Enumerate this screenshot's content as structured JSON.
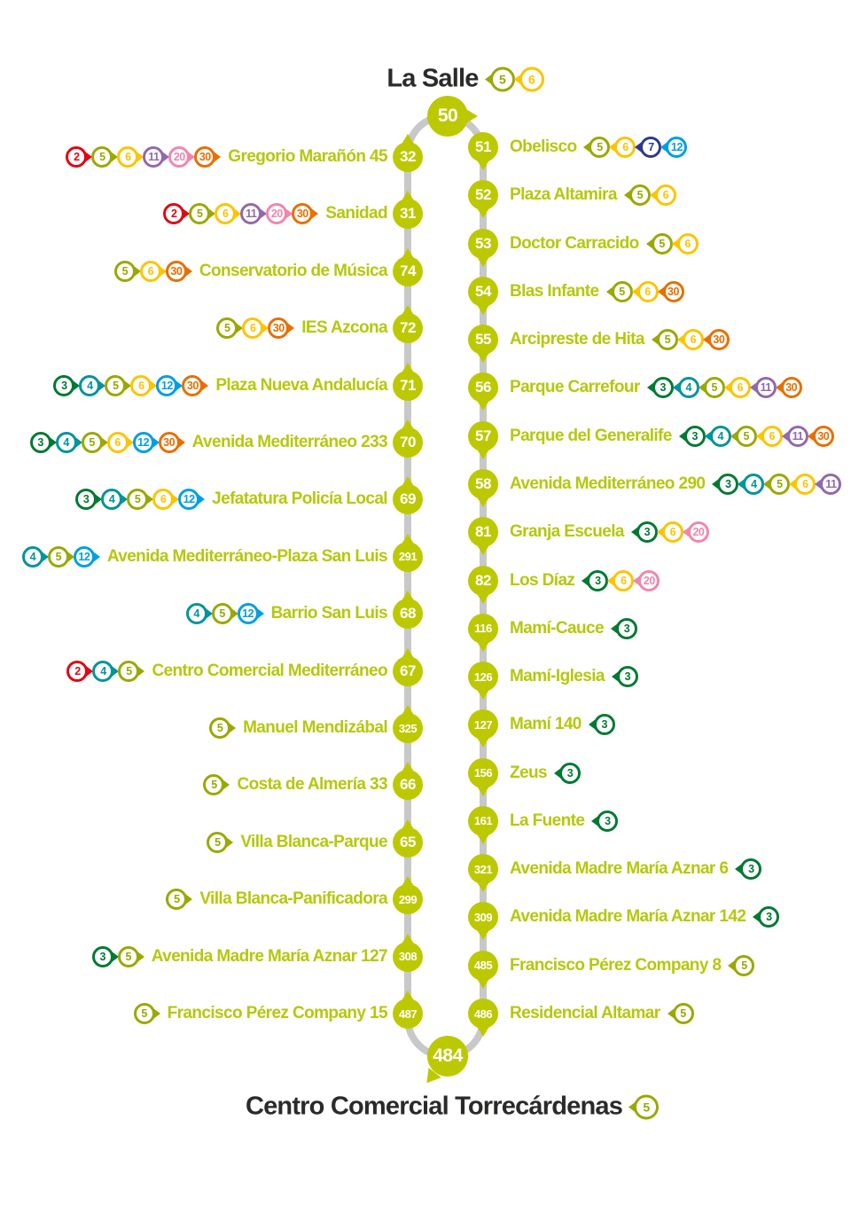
{
  "terminal_top": {
    "name": "La Salle",
    "node": "50",
    "badges": [
      "5",
      "6"
    ]
  },
  "terminal_bottom": {
    "name": "Centro Comercial Torrecárdenas",
    "node": "484",
    "badges": [
      "5"
    ]
  },
  "colors": {
    "route_node": "#bdc900",
    "track": "#c8c8c8",
    "stop_name": "#b5c80b",
    "title": "#2b2a29",
    "lines": {
      "2": "#e30613",
      "3": "#007a33",
      "4": "#00949c",
      "5": "#9aa900",
      "6": "#fdc400",
      "7": "#2c3a8c",
      "11": "#9468ac",
      "12": "#009fe3",
      "20": "#f186ad",
      "30": "#e86f00"
    }
  },
  "left_stops": [
    {
      "node": "32",
      "name": "Gregorio Marañón 45",
      "badges": [
        "2",
        "5",
        "6",
        "11",
        "20",
        "30"
      ]
    },
    {
      "node": "31",
      "name": "Sanidad",
      "badges": [
        "2",
        "5",
        "6",
        "11",
        "20",
        "30"
      ]
    },
    {
      "node": "74",
      "name": "Conservatorio de Música",
      "badges": [
        "5",
        "6",
        "30"
      ]
    },
    {
      "node": "72",
      "name": "IES Azcona",
      "badges": [
        "5",
        "6",
        "30"
      ]
    },
    {
      "node": "71",
      "name": "Plaza Nueva Andalucía",
      "badges": [
        "3",
        "4",
        "5",
        "6",
        "12",
        "30"
      ]
    },
    {
      "node": "70",
      "name": "Avenida Mediterráneo 233",
      "badges": [
        "3",
        "4",
        "5",
        "6",
        "12",
        "30"
      ]
    },
    {
      "node": "69",
      "name": "Jefatatura Policía Local",
      "badges": [
        "3",
        "4",
        "5",
        "6",
        "12"
      ]
    },
    {
      "node": "291",
      "name": "Avenida Mediterráneo-Plaza San Luis",
      "badges": [
        "4",
        "5",
        "12"
      ]
    },
    {
      "node": "68",
      "name": "Barrio San Luis",
      "badges": [
        "4",
        "5",
        "12"
      ]
    },
    {
      "node": "67",
      "name": "Centro Comercial Mediterráneo",
      "badges": [
        "2",
        "4",
        "5"
      ]
    },
    {
      "node": "325",
      "name": "Manuel Mendizábal",
      "badges": [
        "5"
      ]
    },
    {
      "node": "66",
      "name": "Costa de Almería 33",
      "badges": [
        "5"
      ]
    },
    {
      "node": "65",
      "name": "Villa Blanca-Parque",
      "badges": [
        "5"
      ]
    },
    {
      "node": "299",
      "name": "Villa Blanca-Panificadora",
      "badges": [
        "5"
      ]
    },
    {
      "node": "308",
      "name": "Avenida Madre María Aznar 127",
      "badges": [
        "3",
        "5"
      ]
    },
    {
      "node": "487",
      "name": "Francisco Pérez Company 15",
      "badges": [
        "5"
      ]
    }
  ],
  "right_stops": [
    {
      "node": "51",
      "name": "Obelisco",
      "badges": [
        "5",
        "6",
        "7",
        "12"
      ]
    },
    {
      "node": "52",
      "name": "Plaza Altamira",
      "badges": [
        "5",
        "6"
      ]
    },
    {
      "node": "53",
      "name": "Doctor Carracido",
      "badges": [
        "5",
        "6"
      ]
    },
    {
      "node": "54",
      "name": "Blas Infante",
      "badges": [
        "5",
        "6",
        "30"
      ]
    },
    {
      "node": "55",
      "name": "Arcipreste de Hita",
      "badges": [
        "5",
        "6",
        "30"
      ]
    },
    {
      "node": "56",
      "name": "Parque Carrefour",
      "badges": [
        "3",
        "4",
        "5",
        "6",
        "11",
        "30"
      ]
    },
    {
      "node": "57",
      "name": "Parque del Generalife",
      "badges": [
        "3",
        "4",
        "5",
        "6",
        "11",
        "30"
      ]
    },
    {
      "node": "58",
      "name": "Avenida Mediterráneo 290",
      "badges": [
        "3",
        "4",
        "5",
        "6",
        "11"
      ]
    },
    {
      "node": "81",
      "name": "Granja Escuela",
      "badges": [
        "3",
        "6",
        "20"
      ]
    },
    {
      "node": "82",
      "name": "Los Díaz",
      "badges": [
        "3",
        "6",
        "20"
      ]
    },
    {
      "node": "116",
      "name": "Mamí-Cauce",
      "badges": [
        "3"
      ]
    },
    {
      "node": "126",
      "name": "Mamí-Iglesia",
      "badges": [
        "3"
      ]
    },
    {
      "node": "127",
      "name": "Mamí 140",
      "badges": [
        "3"
      ]
    },
    {
      "node": "156",
      "name": "Zeus",
      "badges": [
        "3"
      ]
    },
    {
      "node": "161",
      "name": "La Fuente",
      "badges": [
        "3"
      ]
    },
    {
      "node": "321",
      "name": "Avenida Madre María Aznar 6",
      "badges": [
        "3"
      ]
    },
    {
      "node": "309",
      "name": "Avenida Madre María Aznar 142",
      "badges": [
        "3"
      ]
    },
    {
      "node": "485",
      "name": "Francisco Pérez Company 8",
      "badges": [
        "5"
      ]
    },
    {
      "node": "486",
      "name": "Residencial Altamar",
      "badges": [
        "5"
      ]
    }
  ]
}
